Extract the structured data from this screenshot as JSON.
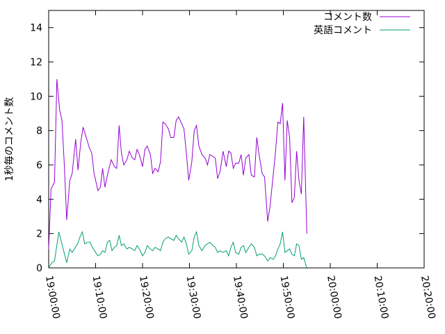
{
  "chart_data": {
    "type": "line",
    "title": "",
    "xlabel": "",
    "ylabel": "1秒毎のコメント数",
    "xlim": [
      "19:00:00",
      "20:20:00"
    ],
    "ylim": [
      0,
      15
    ],
    "x_ticks": [
      "19:00:00",
      "19:10:00",
      "19:20:00",
      "19:30:00",
      "19:40:00",
      "19:50:00",
      "20:00:00",
      "20:10:00",
      "20:20:00"
    ],
    "y_ticks": [
      "0",
      "2",
      "4",
      "6",
      "8",
      "10",
      "12",
      "14"
    ],
    "legend_position": "top-right",
    "grid": false,
    "series": [
      {
        "name": "コメント数",
        "color": "#9400d3",
        "points": [
          [
            "19:00:00",
            1.1
          ],
          [
            "19:00:30",
            4.6
          ],
          [
            "19:01:15",
            5.0
          ],
          [
            "19:01:45",
            11.0
          ],
          [
            "19:02:20",
            9.2
          ],
          [
            "19:02:50",
            8.6
          ],
          [
            "19:03:20",
            6.0
          ],
          [
            "19:03:50",
            2.8
          ],
          [
            "19:04:30",
            5.1
          ],
          [
            "19:05:00",
            5.5
          ],
          [
            "19:05:45",
            7.5
          ],
          [
            "19:06:15",
            5.7
          ],
          [
            "19:06:50",
            7.3
          ],
          [
            "19:07:20",
            8.2
          ],
          [
            "19:08:00",
            7.6
          ],
          [
            "19:08:40",
            7.0
          ],
          [
            "19:09:10",
            6.7
          ],
          [
            "19:09:40",
            5.5
          ],
          [
            "19:10:30",
            4.5
          ],
          [
            "19:11:00",
            4.7
          ],
          [
            "19:11:30",
            5.8
          ],
          [
            "19:12:00",
            4.7
          ],
          [
            "19:12:40",
            5.6
          ],
          [
            "19:13:20",
            6.3
          ],
          [
            "19:14:00",
            5.9
          ],
          [
            "19:14:30",
            5.8
          ],
          [
            "19:15:00",
            8.3
          ],
          [
            "19:15:30",
            6.7
          ],
          [
            "19:16:00",
            6.0
          ],
          [
            "19:16:40",
            6.3
          ],
          [
            "19:17:10",
            6.8
          ],
          [
            "19:17:50",
            6.4
          ],
          [
            "19:18:20",
            6.3
          ],
          [
            "19:18:50",
            6.9
          ],
          [
            "19:19:20",
            6.6
          ],
          [
            "19:20:00",
            5.9
          ],
          [
            "19:20:30",
            6.9
          ],
          [
            "19:21:00",
            7.1
          ],
          [
            "19:21:40",
            6.6
          ],
          [
            "19:22:10",
            5.5
          ],
          [
            "19:22:40",
            5.8
          ],
          [
            "19:23:20",
            5.6
          ],
          [
            "19:23:50",
            6.2
          ],
          [
            "19:24:20",
            8.5
          ],
          [
            "19:24:50",
            8.4
          ],
          [
            "19:25:30",
            8.1
          ],
          [
            "19:26:00",
            7.6
          ],
          [
            "19:26:40",
            7.6
          ],
          [
            "19:27:10",
            8.6
          ],
          [
            "19:27:40",
            8.8
          ],
          [
            "19:28:20",
            8.4
          ],
          [
            "19:28:50",
            8.1
          ],
          [
            "19:29:20",
            6.7
          ],
          [
            "19:29:50",
            5.1
          ],
          [
            "19:30:30",
            6.2
          ],
          [
            "19:31:00",
            8.0
          ],
          [
            "19:31:30",
            8.3
          ],
          [
            "19:32:00",
            7.1
          ],
          [
            "19:32:40",
            6.6
          ],
          [
            "19:33:20",
            6.4
          ],
          [
            "19:33:50",
            6.0
          ],
          [
            "19:34:20",
            6.6
          ],
          [
            "19:35:00",
            6.5
          ],
          [
            "19:35:30",
            6.4
          ],
          [
            "19:36:00",
            5.2
          ],
          [
            "19:36:30",
            5.6
          ],
          [
            "19:37:10",
            6.8
          ],
          [
            "19:37:50",
            5.9
          ],
          [
            "19:38:20",
            6.8
          ],
          [
            "19:38:50",
            6.7
          ],
          [
            "19:39:20",
            5.8
          ],
          [
            "19:39:50",
            6.1
          ],
          [
            "19:40:30",
            6.1
          ],
          [
            "19:41:00",
            6.6
          ],
          [
            "19:41:30",
            5.4
          ],
          [
            "19:42:00",
            6.4
          ],
          [
            "19:42:40",
            6.6
          ],
          [
            "19:43:10",
            5.4
          ],
          [
            "19:43:50",
            5.3
          ],
          [
            "19:44:20",
            7.6
          ],
          [
            "19:44:50",
            6.6
          ],
          [
            "19:45:30",
            5.5
          ],
          [
            "19:46:00",
            5.3
          ],
          [
            "19:46:40",
            2.7
          ],
          [
            "19:47:10",
            3.6
          ],
          [
            "19:47:50",
            5.4
          ],
          [
            "19:48:20",
            6.8
          ],
          [
            "19:48:50",
            8.5
          ],
          [
            "19:49:20",
            8.4
          ],
          [
            "19:49:50",
            9.6
          ],
          [
            "19:50:20",
            5.1
          ],
          [
            "19:50:50",
            8.6
          ],
          [
            "19:51:20",
            7.6
          ],
          [
            "19:51:50",
            3.8
          ],
          [
            "19:52:20",
            4.1
          ],
          [
            "19:52:50",
            6.8
          ],
          [
            "19:53:20",
            5.1
          ],
          [
            "19:53:50",
            4.3
          ],
          [
            "19:54:20",
            8.8
          ],
          [
            "19:55:00",
            2.0
          ]
        ]
      },
      {
        "name": "英語コメント",
        "color": "#009e73",
        "points": [
          [
            "19:00:00",
            0.0
          ],
          [
            "19:00:40",
            0.3
          ],
          [
            "19:01:15",
            0.4
          ],
          [
            "19:02:10",
            2.1
          ],
          [
            "19:03:00",
            1.2
          ],
          [
            "19:03:50",
            0.3
          ],
          [
            "19:04:30",
            1.1
          ],
          [
            "19:05:00",
            0.9
          ],
          [
            "19:05:40",
            1.2
          ],
          [
            "19:06:10",
            1.4
          ],
          [
            "19:06:40",
            1.8
          ],
          [
            "19:07:10",
            2.1
          ],
          [
            "19:07:40",
            1.4
          ],
          [
            "19:08:20",
            1.5
          ],
          [
            "19:08:50",
            1.5
          ],
          [
            "19:09:20",
            1.2
          ],
          [
            "19:10:00",
            0.9
          ],
          [
            "19:10:30",
            0.7
          ],
          [
            "19:11:00",
            0.8
          ],
          [
            "19:11:30",
            1.0
          ],
          [
            "19:12:00",
            0.9
          ],
          [
            "19:12:30",
            1.5
          ],
          [
            "19:13:00",
            1.6
          ],
          [
            "19:13:30",
            1.0
          ],
          [
            "19:14:00",
            1.2
          ],
          [
            "19:14:30",
            1.3
          ],
          [
            "19:15:00",
            1.9
          ],
          [
            "19:15:30",
            1.3
          ],
          [
            "19:16:00",
            1.4
          ],
          [
            "19:16:40",
            1.1
          ],
          [
            "19:17:10",
            1.2
          ],
          [
            "19:17:50",
            1.1
          ],
          [
            "19:18:20",
            1.0
          ],
          [
            "19:18:50",
            1.3
          ],
          [
            "19:19:20",
            1.1
          ],
          [
            "19:20:00",
            0.7
          ],
          [
            "19:20:30",
            0.9
          ],
          [
            "19:21:00",
            1.3
          ],
          [
            "19:21:40",
            1.1
          ],
          [
            "19:22:10",
            1.0
          ],
          [
            "19:22:40",
            1.2
          ],
          [
            "19:23:20",
            1.1
          ],
          [
            "19:23:50",
            1.0
          ],
          [
            "19:24:20",
            1.5
          ],
          [
            "19:24:50",
            1.7
          ],
          [
            "19:25:30",
            1.8
          ],
          [
            "19:26:00",
            1.7
          ],
          [
            "19:26:40",
            1.6
          ],
          [
            "19:27:10",
            1.9
          ],
          [
            "19:27:40",
            1.7
          ],
          [
            "19:28:20",
            1.5
          ],
          [
            "19:28:50",
            1.8
          ],
          [
            "19:29:20",
            1.4
          ],
          [
            "19:29:50",
            0.8
          ],
          [
            "19:30:30",
            1.0
          ],
          [
            "19:31:00",
            1.8
          ],
          [
            "19:31:30",
            2.1
          ],
          [
            "19:32:00",
            1.3
          ],
          [
            "19:32:40",
            1.0
          ],
          [
            "19:33:20",
            1.3
          ],
          [
            "19:33:50",
            1.4
          ],
          [
            "19:34:20",
            1.5
          ],
          [
            "19:35:00",
            1.3
          ],
          [
            "19:35:30",
            1.2
          ],
          [
            "19:36:00",
            0.9
          ],
          [
            "19:36:30",
            1.0
          ],
          [
            "19:37:10",
            0.9
          ],
          [
            "19:37:50",
            1.0
          ],
          [
            "19:38:20",
            0.7
          ],
          [
            "19:38:50",
            1.2
          ],
          [
            "19:39:20",
            1.5
          ],
          [
            "19:39:50",
            0.9
          ],
          [
            "19:40:30",
            0.8
          ],
          [
            "19:41:00",
            1.2
          ],
          [
            "19:41:30",
            1.3
          ],
          [
            "19:42:00",
            0.9
          ],
          [
            "19:42:40",
            1.2
          ],
          [
            "19:43:10",
            1.4
          ],
          [
            "19:43:50",
            1.2
          ],
          [
            "19:44:20",
            0.7
          ],
          [
            "19:44:50",
            0.8
          ],
          [
            "19:45:30",
            0.8
          ],
          [
            "19:46:00",
            0.7
          ],
          [
            "19:46:40",
            0.4
          ],
          [
            "19:47:10",
            0.6
          ],
          [
            "19:47:50",
            0.5
          ],
          [
            "19:48:20",
            0.7
          ],
          [
            "19:48:50",
            1.1
          ],
          [
            "19:49:20",
            1.4
          ],
          [
            "19:49:50",
            2.1
          ],
          [
            "19:50:20",
            0.9
          ],
          [
            "19:50:50",
            1.0
          ],
          [
            "19:51:20",
            1.1
          ],
          [
            "19:51:50",
            0.8
          ],
          [
            "19:52:20",
            0.7
          ],
          [
            "19:52:50",
            1.4
          ],
          [
            "19:53:20",
            1.3
          ],
          [
            "19:53:50",
            0.5
          ],
          [
            "19:54:20",
            0.6
          ],
          [
            "19:55:00",
            0.0
          ]
        ]
      }
    ]
  }
}
